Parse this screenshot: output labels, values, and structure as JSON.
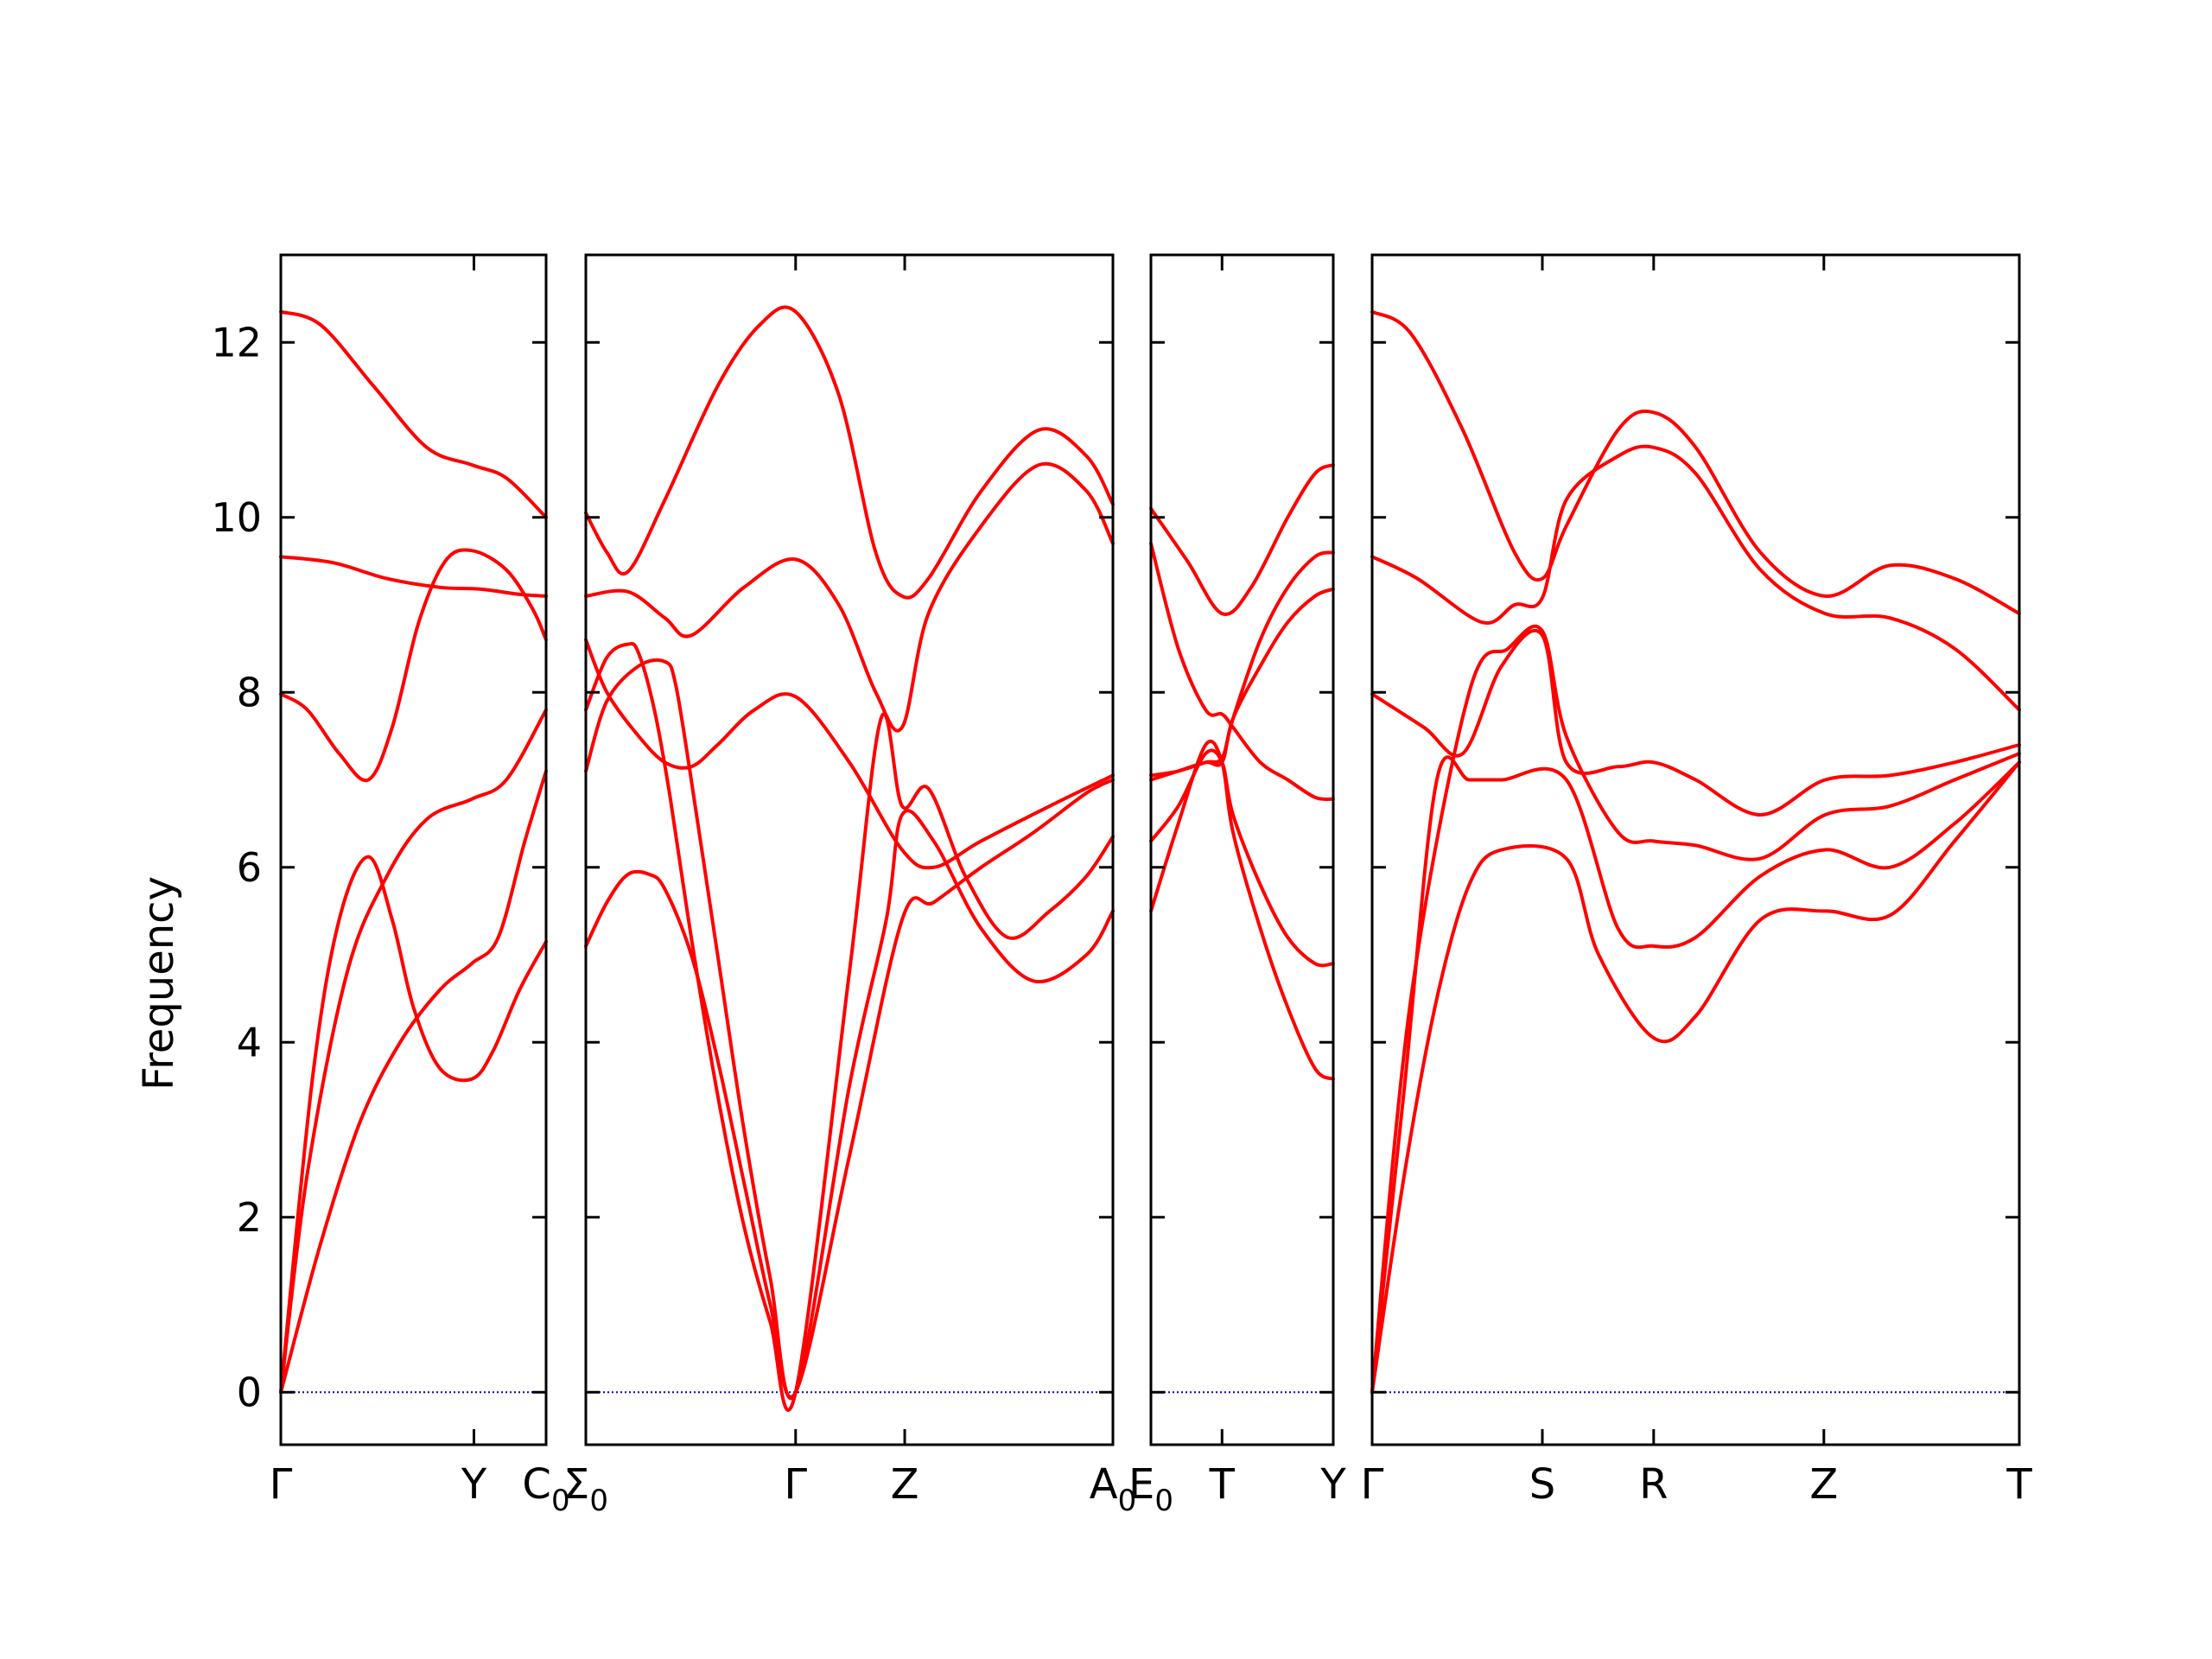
{
  "chart_data": {
    "type": "line",
    "ylabel": "Frequency",
    "ylim": [
      -0.6,
      13
    ],
    "yticks": [
      "0",
      "2",
      "4",
      "6",
      "8",
      "10",
      "12"
    ],
    "line_color": "#ff0000",
    "zero_line_color": "#0000cc",
    "grid": false,
    "panels": [
      {
        "id": "p1",
        "xlim": [
          0,
          1
        ],
        "ticks": [
          {
            "x": 0,
            "label": "Γ"
          },
          {
            "x": 0.728,
            "label": "Y"
          },
          {
            "x": 1,
            "label": "C",
            "sub": "0"
          }
        ],
        "series": [
          {
            "x": [
              0,
              0.15,
              0.35,
              0.55,
              0.72,
              0.85,
              1
            ],
            "y": [
              12.35,
              12.2,
              11.5,
              10.8,
              10.6,
              10.45,
              10.0
            ]
          },
          {
            "x": [
              0,
              0.2,
              0.4,
              0.6,
              0.75,
              0.9,
              1
            ],
            "y": [
              9.55,
              9.48,
              9.3,
              9.2,
              9.18,
              9.12,
              9.1
            ]
          },
          {
            "x": [
              0,
              0.1,
              0.22,
              0.33,
              0.42,
              0.52,
              0.62,
              0.72,
              0.85,
              0.95,
              1
            ],
            "y": [
              7.98,
              7.8,
              7.3,
              7.0,
              7.6,
              8.8,
              9.5,
              9.62,
              9.4,
              8.95,
              8.6
            ]
          },
          {
            "x": [
              0,
              0.12,
              0.22,
              0.33,
              0.42,
              0.5,
              0.6,
              0.72,
              0.8,
              0.9,
              1
            ],
            "y": [
              0,
              3.6,
              5.4,
              6.12,
              5.4,
              4.4,
              3.7,
              3.58,
              3.9,
              4.6,
              5.15
            ]
          },
          {
            "x": [
              0,
              0.1,
              0.25,
              0.4,
              0.55,
              0.72,
              0.85,
              1
            ],
            "y": [
              0,
              2.5,
              4.8,
              5.9,
              6.55,
              6.78,
              7.0,
              7.8
            ]
          },
          {
            "x": [
              0,
              0.15,
              0.3,
              0.45,
              0.6,
              0.72,
              0.82,
              0.92,
              1
            ],
            "y": [
              0,
              1.7,
              3.1,
              4.0,
              4.6,
              4.9,
              5.2,
              6.3,
              7.1
            ]
          }
        ]
      },
      {
        "id": "p2",
        "xlim": [
          0,
          1
        ],
        "ticks": [
          {
            "x": 0,
            "label": "Σ",
            "sub": "0"
          },
          {
            "x": 0.398,
            "label": "Γ"
          },
          {
            "x": 0.605,
            "label": "Z"
          },
          {
            "x": 1,
            "label": "A",
            "sub": "0"
          }
        ],
        "series": [
          {
            "x": [
              0,
              0.04,
              0.08,
              0.15,
              0.25,
              0.33,
              0.398,
              0.48,
              0.55,
              0.6,
              0.65,
              0.75,
              0.86,
              0.95,
              1
            ],
            "y": [
              10.05,
              9.6,
              9.38,
              10.2,
              11.5,
              12.2,
              12.35,
              11.4,
              9.6,
              9.1,
              9.3,
              10.3,
              11.0,
              10.7,
              10.15
            ]
          },
          {
            "x": [
              0,
              0.08,
              0.15,
              0.2,
              0.3,
              0.398,
              0.48,
              0.55,
              0.6,
              0.65,
              0.75,
              0.86,
              0.95,
              1
            ],
            "y": [
              9.1,
              9.15,
              8.85,
              8.65,
              9.2,
              9.52,
              9.0,
              8.0,
              7.6,
              8.9,
              9.9,
              10.6,
              10.3,
              9.7
            ]
          },
          {
            "x": [
              0,
              0.04,
              0.1,
              0.15,
              0.2,
              0.25,
              0.32,
              0.398,
              0.5,
              0.6,
              0.66,
              0.75,
              0.88,
              1
            ],
            "y": [
              8.6,
              8.0,
              7.5,
              7.2,
              7.15,
              7.4,
              7.8,
              7.95,
              7.2,
              6.2,
              6.0,
              6.3,
              6.7,
              7.05
            ]
          },
          {
            "x": [
              0,
              0.04,
              0.08,
              0.1,
              0.13,
              0.16,
              0.2,
              0.25,
              0.3,
              0.35,
              0.398,
              0.5,
              0.56,
              0.6,
              0.65,
              0.72,
              0.8,
              0.88,
              0.95,
              1
            ],
            "y": [
              7.8,
              8.4,
              8.55,
              8.45,
              7.8,
              6.8,
              5.2,
              3.4,
              1.9,
              0.8,
              0,
              4.8,
              7.7,
              6.7,
              6.9,
              5.9,
              5.2,
              5.5,
              5.9,
              6.35
            ]
          },
          {
            "x": [
              0,
              0.04,
              0.1,
              0.15,
              0.17,
              0.2,
              0.25,
              0.3,
              0.35,
              0.398,
              0.5,
              0.57,
              0.6,
              0.66,
              0.75,
              0.85,
              0.95,
              1
            ],
            "y": [
              7.1,
              7.9,
              8.3,
              8.35,
              8.1,
              7.0,
              5.0,
              3.0,
              1.3,
              0,
              3.5,
              5.4,
              6.6,
              6.3,
              5.3,
              4.7,
              5.0,
              5.5
            ]
          },
          {
            "x": [
              0,
              0.04,
              0.08,
              0.12,
              0.15,
              0.2,
              0.25,
              0.3,
              0.35,
              0.398,
              0.5,
              0.6,
              0.66,
              0.75,
              0.85,
              0.95,
              1
            ],
            "y": [
              5.1,
              5.6,
              5.92,
              5.92,
              5.75,
              5.0,
              3.8,
              2.4,
              1.0,
              0,
              2.7,
              5.4,
              5.6,
              6.0,
              6.4,
              6.85,
              7.0
            ]
          }
        ]
      },
      {
        "id": "p3",
        "xlim": [
          0,
          1
        ],
        "ticks": [
          {
            "x": 0,
            "label": "E",
            "sub": "0"
          },
          {
            "x": 0.39,
            "label": "T"
          },
          {
            "x": 1,
            "label": "Y"
          }
        ],
        "series": [
          {
            "x": [
              0,
              0.2,
              0.39,
              0.55,
              0.75,
              0.9,
              1
            ],
            "y": [
              10.1,
              9.5,
              8.9,
              9.2,
              10.0,
              10.5,
              10.6
            ]
          },
          {
            "x": [
              0,
              0.15,
              0.3,
              0.39,
              0.45,
              0.6,
              0.75,
              0.9,
              1
            ],
            "y": [
              9.7,
              8.5,
              7.8,
              7.75,
              7.6,
              7.2,
              7.0,
              6.8,
              6.78
            ]
          },
          {
            "x": [
              0,
              0.15,
              0.3,
              0.39,
              0.45,
              0.6,
              0.75,
              0.9,
              1
            ],
            "y": [
              7.05,
              7.1,
              7.2,
              7.25,
              7.7,
              8.6,
              9.2,
              9.55,
              9.6
            ]
          },
          {
            "x": [
              0,
              0.15,
              0.3,
              0.39,
              0.45,
              0.6,
              0.75,
              0.9,
              1
            ],
            "y": [
              7.0,
              7.1,
              7.2,
              7.2,
              7.7,
              8.3,
              8.8,
              9.1,
              9.18
            ]
          },
          {
            "x": [
              0,
              0.15,
              0.3,
              0.39,
              0.45,
              0.6,
              0.75,
              0.9,
              1
            ],
            "y": [
              6.3,
              6.7,
              7.3,
              7.2,
              6.6,
              5.8,
              5.2,
              4.9,
              4.9
            ]
          },
          {
            "x": [
              0,
              0.15,
              0.3,
              0.39,
              0.45,
              0.6,
              0.75,
              0.9,
              1
            ],
            "y": [
              5.5,
              6.5,
              7.4,
              7.2,
              6.4,
              5.3,
              4.4,
              3.7,
              3.58
            ]
          }
        ]
      },
      {
        "id": "p4",
        "xlim": [
          0,
          1
        ],
        "ticks": [
          {
            "x": 0,
            "label": "Γ"
          },
          {
            "x": 0.263,
            "label": "S"
          },
          {
            "x": 0.435,
            "label": "R"
          },
          {
            "x": 0.698,
            "label": "Z"
          },
          {
            "x": 1,
            "label": "T"
          }
        ],
        "series": [
          {
            "x": [
              0,
              0.06,
              0.14,
              0.22,
              0.263,
              0.3,
              0.38,
              0.435,
              0.5,
              0.6,
              0.7,
              0.8,
              0.9,
              1
            ],
            "y": [
              12.35,
              12.1,
              11.0,
              9.6,
              9.3,
              9.9,
              11.0,
              11.2,
              10.8,
              9.6,
              9.1,
              9.45,
              9.3,
              8.9
            ]
          },
          {
            "x": [
              0,
              0.07,
              0.17,
              0.22,
              0.263,
              0.3,
              0.38,
              0.435,
              0.5,
              0.6,
              0.7,
              0.8,
              0.9,
              1
            ],
            "y": [
              9.55,
              9.3,
              8.8,
              9.0,
              9.08,
              10.2,
              10.7,
              10.8,
              10.5,
              9.4,
              8.9,
              8.85,
              8.5,
              7.8
            ]
          },
          {
            "x": [
              0,
              0.08,
              0.14,
              0.2,
              0.263,
              0.3,
              0.38,
              0.435,
              0.5,
              0.6,
              0.7,
              0.8,
              0.9,
              1
            ],
            "y": [
              7.98,
              7.6,
              7.3,
              8.3,
              8.65,
              7.2,
              7.15,
              7.2,
              7.0,
              6.6,
              7.0,
              7.05,
              7.2,
              7.4
            ]
          },
          {
            "x": [
              0,
              0.06,
              0.15,
              0.21,
              0.263,
              0.3,
              0.38,
              0.435,
              0.5,
              0.6,
              0.7,
              0.8,
              0.9,
              1
            ],
            "y": [
              0,
              4.5,
              8.0,
              8.5,
              8.7,
              7.5,
              6.4,
              6.3,
              6.25,
              6.1,
              6.6,
              6.7,
              7.0,
              7.3
            ]
          },
          {
            "x": [
              0,
              0.05,
              0.1,
              0.15,
              0.2,
              0.3,
              0.38,
              0.435,
              0.5,
              0.6,
              0.7,
              0.8,
              0.9,
              1
            ],
            "y": [
              0,
              3.5,
              7.0,
              7.0,
              7.0,
              7.0,
              5.3,
              5.1,
              5.2,
              5.9,
              6.2,
              6.0,
              6.5,
              7.2
            ]
          },
          {
            "x": [
              0,
              0.05,
              0.1,
              0.15,
              0.2,
              0.3,
              0.35,
              0.435,
              0.5,
              0.6,
              0.7,
              0.8,
              0.9,
              1
            ],
            "y": [
              0,
              2.5,
              4.5,
              5.8,
              6.2,
              6.1,
              5.0,
              4.05,
              4.3,
              5.4,
              5.5,
              5.45,
              6.3,
              7.2
            ]
          }
        ]
      }
    ]
  }
}
